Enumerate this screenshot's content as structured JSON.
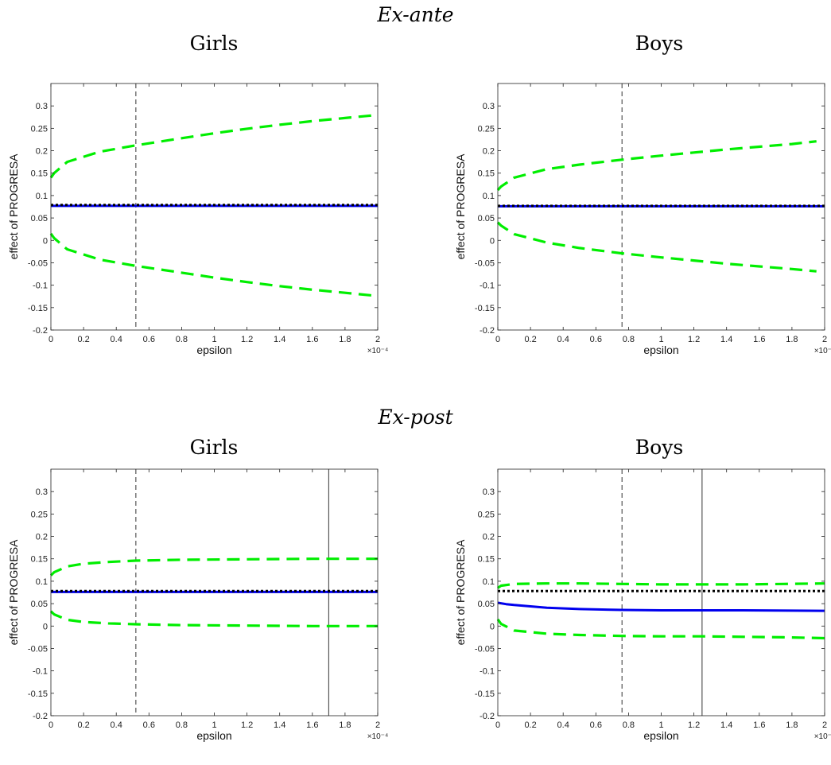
{
  "sections": [
    "Ex-ante",
    "Ex-post"
  ],
  "chart_data": [
    {
      "type": "line",
      "section": "Ex-ante",
      "title": "Girls",
      "xlabel": "epsilon",
      "ylabel": "effect of PROGRESA",
      "x_exponent": "×10⁻⁴",
      "xlim": [
        0,
        2
      ],
      "ylim": [
        -0.2,
        0.35
      ],
      "xticks": [
        "0",
        "0.2",
        "0.4",
        "0.6",
        "0.8",
        "1",
        "1.2",
        "1.4",
        "1.6",
        "1.8",
        "2"
      ],
      "yticks": [
        "-0.2",
        "-0.15",
        "-0.1",
        "-0.05",
        "0",
        "0.05",
        "0.1",
        "0.15",
        "0.2",
        "0.25",
        "0.3"
      ],
      "vlines": [
        {
          "x": 0.52,
          "style": "dashed"
        }
      ],
      "series": [
        {
          "role": "upper-bound",
          "color": "#00ee00",
          "style": "dashed",
          "x": [
            0,
            0.02,
            0.1,
            0.3,
            0.52,
            0.8,
            1.0,
            1.2,
            1.4,
            1.6,
            1.8,
            2.0
          ],
          "y": [
            0.14,
            0.15,
            0.175,
            0.198,
            0.212,
            0.228,
            0.239,
            0.249,
            0.258,
            0.266,
            0.273,
            0.28
          ]
        },
        {
          "role": "lower-bound",
          "color": "#00ee00",
          "style": "dashed",
          "x": [
            0,
            0.02,
            0.1,
            0.3,
            0.52,
            0.8,
            1.0,
            1.2,
            1.4,
            1.6,
            1.8,
            2.0
          ],
          "y": [
            0.015,
            0.005,
            -0.02,
            -0.043,
            -0.057,
            -0.072,
            -0.083,
            -0.093,
            -0.102,
            -0.11,
            -0.117,
            -0.124
          ]
        },
        {
          "role": "estimate",
          "color": "#0000ee",
          "style": "solid",
          "x": [
            0,
            2
          ],
          "y": [
            0.077,
            0.077
          ]
        },
        {
          "role": "reference",
          "color": "#000000",
          "style": "dotted",
          "x": [
            0,
            2
          ],
          "y": [
            0.079,
            0.079
          ]
        }
      ]
    },
    {
      "type": "line",
      "section": "Ex-ante",
      "title": "Boys",
      "xlabel": "epsilon",
      "ylabel": "effect of PROGRESA",
      "x_exponent": "×10⁻⁴",
      "xlim": [
        0,
        2
      ],
      "ylim": [
        -0.2,
        0.35
      ],
      "xticks": [
        "0",
        "0.2",
        "0.4",
        "0.6",
        "0.8",
        "1",
        "1.2",
        "1.4",
        "1.6",
        "1.8",
        "2"
      ],
      "yticks": [
        "-0.2",
        "-0.15",
        "-0.1",
        "-0.05",
        "0",
        "0.05",
        "0.1",
        "0.15",
        "0.2",
        "0.25",
        "0.3"
      ],
      "vlines": [
        {
          "x": 0.76,
          "style": "dashed"
        }
      ],
      "series": [
        {
          "role": "upper-bound",
          "color": "#00ee00",
          "style": "dashed",
          "x": [
            0,
            0.02,
            0.1,
            0.3,
            0.5,
            0.76,
            1.0,
            1.2,
            1.4,
            1.6,
            1.8,
            1.95
          ],
          "y": [
            0.112,
            0.12,
            0.14,
            0.159,
            0.169,
            0.18,
            0.189,
            0.196,
            0.203,
            0.209,
            0.215,
            0.221
          ]
        },
        {
          "role": "lower-bound",
          "color": "#00ee00",
          "style": "dashed",
          "x": [
            0,
            0.02,
            0.1,
            0.3,
            0.5,
            0.76,
            1.0,
            1.2,
            1.4,
            1.6,
            1.8,
            1.95
          ],
          "y": [
            0.04,
            0.033,
            0.014,
            -0.005,
            -0.017,
            -0.029,
            -0.038,
            -0.045,
            -0.052,
            -0.058,
            -0.064,
            -0.069
          ]
        },
        {
          "role": "estimate",
          "color": "#0000ee",
          "style": "solid",
          "x": [
            0,
            2
          ],
          "y": [
            0.076,
            0.076
          ]
        },
        {
          "role": "reference",
          "color": "#000000",
          "style": "dotted",
          "x": [
            0,
            2
          ],
          "y": [
            0.077,
            0.077
          ]
        }
      ]
    },
    {
      "type": "line",
      "section": "Ex-post",
      "title": "Girls",
      "xlabel": "epsilon",
      "ylabel": "effect of PROGRESA",
      "x_exponent": "×10⁻⁴",
      "xlim": [
        0,
        2
      ],
      "ylim": [
        -0.2,
        0.35
      ],
      "xticks": [
        "0",
        "0.2",
        "0.4",
        "0.6",
        "0.8",
        "1",
        "1.2",
        "1.4",
        "1.6",
        "1.8",
        "2"
      ],
      "yticks": [
        "-0.2",
        "-0.15",
        "-0.1",
        "-0.05",
        "0",
        "0.05",
        "0.1",
        "0.15",
        "0.2",
        "0.25",
        "0.3"
      ],
      "vlines": [
        {
          "x": 0.52,
          "style": "dashed"
        },
        {
          "x": 1.7,
          "style": "solid"
        }
      ],
      "series": [
        {
          "role": "upper-bound",
          "color": "#00ee00",
          "style": "dashed",
          "x": [
            0,
            0.02,
            0.1,
            0.2,
            0.35,
            0.52,
            0.8,
            1.2,
            1.6,
            2.0
          ],
          "y": [
            0.113,
            0.12,
            0.133,
            0.139,
            0.143,
            0.146,
            0.148,
            0.149,
            0.15,
            0.15
          ]
        },
        {
          "role": "lower-bound",
          "color": "#00ee00",
          "style": "dashed",
          "x": [
            0,
            0.02,
            0.1,
            0.2,
            0.35,
            0.52,
            0.8,
            1.2,
            1.6,
            2.0
          ],
          "y": [
            0.033,
            0.026,
            0.014,
            0.009,
            0.006,
            0.004,
            0.002,
            0.001,
            0.0,
            0.0
          ]
        },
        {
          "role": "estimate",
          "color": "#0000ee",
          "style": "solid",
          "x": [
            0,
            2
          ],
          "y": [
            0.076,
            0.076
          ]
        },
        {
          "role": "reference",
          "color": "#000000",
          "style": "dotted",
          "x": [
            0,
            2
          ],
          "y": [
            0.078,
            0.078
          ]
        }
      ]
    },
    {
      "type": "line",
      "section": "Ex-post",
      "title": "Boys",
      "xlabel": "epsilon",
      "ylabel": "effect of PROGRESA",
      "x_exponent": "×10⁻⁴",
      "xlim": [
        0,
        2
      ],
      "ylim": [
        -0.2,
        0.35
      ],
      "xticks": [
        "0",
        "0.2",
        "0.4",
        "0.6",
        "0.8",
        "1",
        "1.2",
        "1.4",
        "1.6",
        "1.8",
        "2"
      ],
      "yticks": [
        "-0.2",
        "-0.15",
        "-0.1",
        "-0.05",
        "0",
        "0.05",
        "0.1",
        "0.15",
        "0.2",
        "0.25",
        "0.3"
      ],
      "vlines": [
        {
          "x": 0.76,
          "style": "dashed"
        },
        {
          "x": 1.25,
          "style": "solid"
        }
      ],
      "series": [
        {
          "role": "upper-bound",
          "color": "#00ee00",
          "style": "dashed",
          "x": [
            0,
            0.02,
            0.1,
            0.3,
            0.5,
            0.76,
            1.0,
            1.25,
            1.5,
            1.75,
            2.0
          ],
          "y": [
            0.085,
            0.09,
            0.094,
            0.095,
            0.095,
            0.094,
            0.093,
            0.093,
            0.093,
            0.094,
            0.095
          ]
        },
        {
          "role": "lower-bound",
          "color": "#00ee00",
          "style": "dashed",
          "x": [
            0,
            0.02,
            0.1,
            0.3,
            0.5,
            0.76,
            1.0,
            1.25,
            1.5,
            1.75,
            2.0
          ],
          "y": [
            0.015,
            0.005,
            -0.01,
            -0.017,
            -0.02,
            -0.022,
            -0.023,
            -0.023,
            -0.024,
            -0.025,
            -0.027
          ]
        },
        {
          "role": "estimate",
          "color": "#0000ee",
          "style": "solid",
          "x": [
            0,
            0.05,
            0.1,
            0.2,
            0.3,
            0.5,
            0.76,
            1.0,
            1.5,
            2.0
          ],
          "y": [
            0.052,
            0.049,
            0.047,
            0.044,
            0.041,
            0.038,
            0.036,
            0.035,
            0.035,
            0.034
          ]
        },
        {
          "role": "reference",
          "color": "#000000",
          "style": "dotted",
          "x": [
            0,
            2
          ],
          "y": [
            0.078,
            0.078
          ]
        }
      ]
    }
  ]
}
